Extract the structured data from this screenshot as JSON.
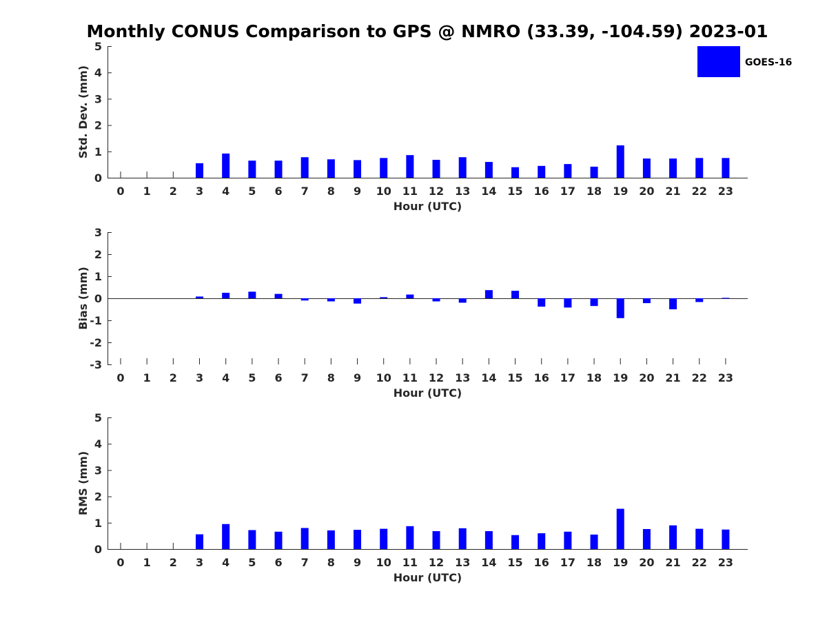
{
  "figure_title": "Monthly CONUS Comparison to GPS @ NMRO (33.39, -104.59) 2023-01",
  "legend": {
    "label": "GOES-16",
    "color": "#0000ff"
  },
  "chart_data": [
    {
      "type": "bar",
      "title": "Monthly CONUS Comparison to GPS @ NMRO (33.39, -104.59) 2023-01",
      "xlabel": "Hour (UTC)",
      "ylabel": "Std. Dev. (mm)",
      "categories": [
        "0",
        "1",
        "2",
        "3",
        "4",
        "5",
        "6",
        "7",
        "8",
        "9",
        "10",
        "11",
        "12",
        "13",
        "14",
        "15",
        "16",
        "17",
        "18",
        "19",
        "20",
        "21",
        "22",
        "23"
      ],
      "ylim": [
        0,
        5
      ],
      "yticks": [
        0,
        1,
        2,
        3,
        4,
        5
      ],
      "series": [
        {
          "name": "GOES-16",
          "values": [
            null,
            null,
            null,
            0.55,
            0.92,
            0.65,
            0.65,
            0.78,
            0.7,
            0.67,
            0.75,
            0.86,
            0.68,
            0.78,
            0.6,
            0.4,
            0.45,
            0.52,
            0.42,
            1.23,
            0.73,
            0.73,
            0.75,
            0.75
          ]
        }
      ]
    },
    {
      "type": "bar",
      "title": "",
      "xlabel": "Hour (UTC)",
      "ylabel": "Bias (mm)",
      "categories": [
        "0",
        "1",
        "2",
        "3",
        "4",
        "5",
        "6",
        "7",
        "8",
        "9",
        "10",
        "11",
        "12",
        "13",
        "14",
        "15",
        "16",
        "17",
        "18",
        "19",
        "20",
        "21",
        "22",
        "23"
      ],
      "ylim": [
        -3,
        3
      ],
      "yticks": [
        -3,
        -2,
        -1,
        0,
        1,
        2,
        3
      ],
      "series": [
        {
          "name": "GOES-16",
          "values": [
            null,
            null,
            null,
            0.08,
            0.25,
            0.3,
            0.2,
            -0.1,
            -0.14,
            -0.24,
            0.05,
            0.17,
            -0.14,
            -0.2,
            0.37,
            0.34,
            -0.38,
            -0.42,
            -0.35,
            -0.9,
            -0.22,
            -0.5,
            -0.17,
            0.02
          ]
        }
      ]
    },
    {
      "type": "bar",
      "title": "",
      "xlabel": "Hour (UTC)",
      "ylabel": "RMS (mm)",
      "categories": [
        "0",
        "1",
        "2",
        "3",
        "4",
        "5",
        "6",
        "7",
        "8",
        "9",
        "10",
        "11",
        "12",
        "13",
        "14",
        "15",
        "16",
        "17",
        "18",
        "19",
        "20",
        "21",
        "22",
        "23"
      ],
      "ylim": [
        0,
        5
      ],
      "yticks": [
        0,
        1,
        2,
        3,
        4,
        5
      ],
      "series": [
        {
          "name": "GOES-16",
          "values": [
            null,
            null,
            null,
            0.56,
            0.95,
            0.72,
            0.66,
            0.8,
            0.71,
            0.73,
            0.77,
            0.87,
            0.68,
            0.79,
            0.68,
            0.53,
            0.6,
            0.66,
            0.55,
            1.53,
            0.76,
            0.9,
            0.77,
            0.74
          ]
        }
      ]
    }
  ]
}
